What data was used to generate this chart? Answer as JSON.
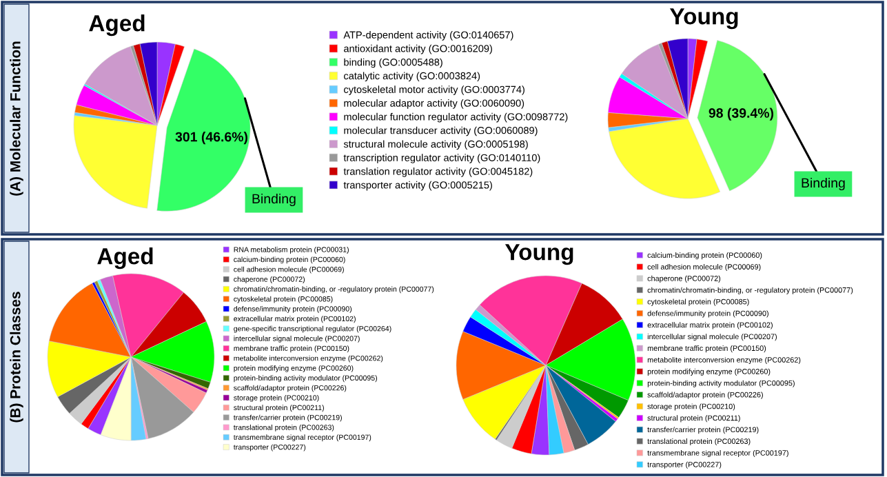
{
  "chart_data": [
    {
      "type": "pie",
      "title": "Aged",
      "legend": "right",
      "annotations": [
        "(A) Molecular Function",
        {
          "text": "Binding"
        }
      ],
      "categories": [
        "ATP-dependent activity (GO:0140657)",
        "antioxidant activity (GO:0016209)",
        "binding (GO:0005488)",
        "catalytic activity (GO:0003824)",
        "cytoskeletal motor activity (GO:0003774)",
        "molecular adaptor activity (GO:0060090)",
        "molecular function regulator activity (GO:0098772)",
        "molecular transducer activity (GO:0060089)",
        "structural molecule activity (GO:0005198)",
        "transcription regulator activity (GO:0140110)",
        "translation regulator activity (GO:0045182)",
        "transporter activity (GO:0005215)"
      ],
      "values": [
        3.5,
        1.8,
        46.6,
        25,
        0.6,
        1.5,
        4,
        0.3,
        11.5,
        0.6,
        1.3,
        3.3
      ],
      "value_labels": [
        null,
        null,
        "301 (46.6%)",
        null,
        null,
        null,
        null,
        null,
        null,
        null,
        null,
        null
      ],
      "colors": [
        "#9933ff",
        "#ff0000",
        "#33ff66",
        "#ffff33",
        "#66ccff",
        "#ff6600",
        "#ff00ff",
        "#00ffff",
        "#cc99cc",
        "#999999",
        "#cc0000",
        "#3300cc"
      ]
    },
    {
      "type": "pie",
      "title": "Young",
      "annotations": [
        {
          "text": "Binding"
        }
      ],
      "categories": [
        null,
        null,
        null,
        null,
        null,
        null,
        null,
        null,
        null,
        null,
        null,
        null
      ],
      "values": [
        1.8,
        2.2,
        39.4,
        29,
        0.8,
        3,
        7.5,
        0.8,
        9.5,
        0.7,
        1.2,
        4.1
      ],
      "value_labels": [
        null,
        null,
        "98 (39.4%)",
        null,
        null,
        null,
        null,
        null,
        null,
        null,
        null,
        null
      ],
      "colors": [
        "#9933ff",
        "#ff0000",
        "#66ff66",
        "#ffff33",
        "#66ccff",
        "#ff6600",
        "#ff00ff",
        "#00ffff",
        "#cc99cc",
        "#999999",
        "#cc0000",
        "#3300cc"
      ]
    },
    {
      "type": "pie",
      "title": "Aged",
      "legend": "right",
      "annotations": [
        "(B) Protein Classes"
      ],
      "categories": [
        "RNA metabolism protein (PC00031)",
        "calcium-binding protein (PC00060)",
        "cell adhesion molecule (PC00069)",
        "chaperone (PC00072)",
        "chromatin/chromatin-binding, or -regulatory protein (PC00077)",
        "cytoskeletal protein (PC00085)",
        "defense/immunity protein (PC00090)",
        "extracellular matrix protein (PC00102)",
        "gene-specific transcriptional regulator (PC00264)",
        "intercellular signal molecule (PC00207)",
        "membrane traffic protein (PC00150)",
        "metabolite interconversion enzyme (PC00262)",
        "protein modifying enzyme (PC00260)",
        "protein-binding activity modulator (PC00095)",
        "scaffold/adaptor protein (PC00226)",
        "storage protein (PC00210)",
        "structural protein (PC00211)",
        "transfer/carrier protein (PC00219)",
        "translational protein (PC00263)",
        "transmembrane signal receptor (PC00197)",
        "transporter (PC00227)"
      ],
      "values": [
        2.7,
        1.6,
        3.0,
        3.9,
        11.0,
        14.2,
        0.5,
        0.6,
        0.6,
        2.5,
        14.4,
        7.1,
        11.9,
        1.3,
        0.3,
        0.6,
        4.4,
        10.2,
        0.4,
        2.9,
        5.9
      ],
      "colors": [
        "#9933ff",
        "#ff0000",
        "#cccccc",
        "#666666",
        "#ffff00",
        "#ff6600",
        "#0000ff",
        "#999933",
        "#66ffff",
        "#cc66cc",
        "#ff3399",
        "#cc0000",
        "#00ff00",
        "#336600",
        "#ff9933",
        "#990099",
        "#ff9999",
        "#999999",
        "#ff99cc",
        "#66ccff",
        "#ffffcc"
      ]
    },
    {
      "type": "pie",
      "title": "Young",
      "legend": "right",
      "categories": [
        "calcium-binding protein (PC00060)",
        "cell adhesion molecule (PC00069)",
        "chaperone (PC00072)",
        "chromatin/chromatin-binding, or -regulatory protein (PC00077)",
        "cytoskeletal protein (PC00085)",
        "defense/immunity protein (PC00090)",
        "extracellular matrix protein (PC00102)",
        "intercellular signal molecule (PC00207)",
        "membrane traffic protein (PC00150)",
        "metabolite interconversion enzyme (PC00262)",
        "protein modifying enzyme (PC00260)",
        "protein-binding activity modulator (PC00095)",
        "scaffold/adaptor protein (PC00226)",
        "storage protein (PC00210)",
        "structural protein (PC00211)",
        "transfer/carrier protein (PC00219)",
        "translational protein (PC00263)",
        "transmembrane signal receptor (PC00197)",
        "transporter (PC00227)"
      ],
      "values": [
        3.2,
        3.6,
        3.1,
        0.3,
        9.2,
        12.4,
        2.9,
        1.6,
        1.1,
        19.8,
        9.8,
        15.0,
        3.5,
        0.3,
        0.6,
        6.4,
        2.6,
        2.0,
        2.6
      ],
      "colors": [
        "#9933ff",
        "#ff0000",
        "#cccccc",
        "#666666",
        "#ffff00",
        "#ff6600",
        "#0000ff",
        "#00ffff",
        "#cc99cc",
        "#ff3399",
        "#cc0000",
        "#00ff00",
        "#009900",
        "#ffc000",
        "#cc00ff",
        "#006699",
        "#666666",
        "#ff9999",
        "#33ccff"
      ]
    }
  ]
}
